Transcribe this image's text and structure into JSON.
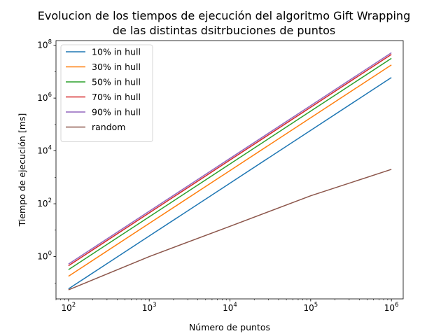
{
  "chart_data": {
    "type": "line",
    "title_line1": "Evolucion de los tiempos de ejecución del algoritmo Gift Wrapping",
    "title_line2": "de las distintas dsitrbuciones de puntos",
    "xlabel": "Número de puntos",
    "ylabel": "Tiempo de ejecución [ms]",
    "xscale": "log",
    "yscale": "log",
    "xlim": [
      70,
      1400000
    ],
    "ylim": [
      0.025,
      150000000
    ],
    "x": [
      100,
      1000,
      10000,
      100000,
      1000000
    ],
    "x_major_ticks": [
      {
        "value": 100,
        "base": "10",
        "exp": "2"
      },
      {
        "value": 1000,
        "base": "10",
        "exp": "3"
      },
      {
        "value": 10000,
        "base": "10",
        "exp": "4"
      },
      {
        "value": 100000,
        "base": "10",
        "exp": "5"
      },
      {
        "value": 1000000,
        "base": "10",
        "exp": "6"
      }
    ],
    "y_major_ticks": [
      {
        "value": 1,
        "base": "10",
        "exp": "0"
      },
      {
        "value": 100,
        "base": "10",
        "exp": "2"
      },
      {
        "value": 10000,
        "base": "10",
        "exp": "4"
      },
      {
        "value": 1000000,
        "base": "10",
        "exp": "6"
      },
      {
        "value": 100000000,
        "base": "10",
        "exp": "8"
      }
    ],
    "grid": false,
    "legend_position": "top-left",
    "series": [
      {
        "name": "10% in hull",
        "color": "#1f77b4",
        "values": [
          0.06,
          6,
          600,
          60000,
          6000000
        ]
      },
      {
        "name": "30% in hull",
        "color": "#ff7f0e",
        "values": [
          0.18,
          18,
          1800,
          180000,
          18000000
        ]
      },
      {
        "name": "50% in hull",
        "color": "#2ca02c",
        "values": [
          0.32,
          32,
          3200,
          320000,
          32000000
        ]
      },
      {
        "name": "70% in hull",
        "color": "#d62728",
        "values": [
          0.45,
          45,
          4500,
          450000,
          45000000
        ]
      },
      {
        "name": "90% in hull",
        "color": "#9467bd",
        "values": [
          0.52,
          52,
          5200,
          520000,
          52000000
        ]
      },
      {
        "name": "random",
        "color": "#8c564b",
        "values": [
          0.055,
          1.0,
          14,
          200,
          2000
        ]
      }
    ]
  }
}
